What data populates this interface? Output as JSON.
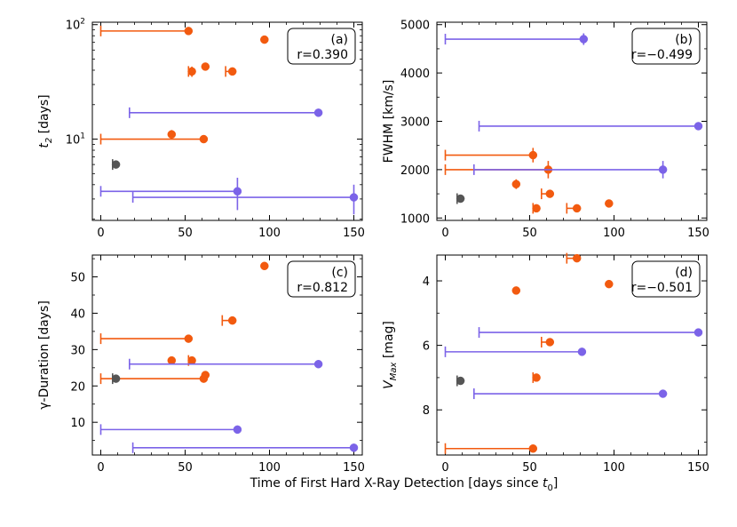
{
  "figure": {
    "shared_xlabel_pre": "Time of First Hard X-Ray Detection [days since ",
    "shared_xlabel_sym": "t",
    "shared_xlabel_sub": "0",
    "shared_xlabel_post": "]"
  },
  "colors": {
    "orange": "#f25a0f",
    "purple": "#7b63e8",
    "gray": "#555555"
  },
  "chart_data": [
    {
      "type": "scatter",
      "panel": "(a)",
      "r_label": "r=0.390",
      "ylabel_main": "t",
      "ylabel_sub": "2",
      "ylabel_post": " [days]",
      "yscale": "log",
      "xlim": [
        -5,
        155
      ],
      "ylim": [
        1.95,
        105
      ],
      "x_ticks": [
        0,
        50,
        100,
        150
      ],
      "y_ticks": [
        10,
        100
      ],
      "y_tick_labels": [
        {
          "base": "10",
          "exp": "1"
        },
        {
          "base": "10",
          "exp": "2"
        }
      ],
      "points": [
        {
          "x": 52,
          "y": 88,
          "xlow": 0,
          "yerr": 0,
          "color": "orange"
        },
        {
          "x": 97,
          "y": 74,
          "xlow": null,
          "yerr": 5,
          "color": "orange"
        },
        {
          "x": 62,
          "y": 43,
          "xlow": null,
          "yerr": 3,
          "color": "orange"
        },
        {
          "x": 54,
          "y": 39,
          "xlow": 52,
          "yerr": 4,
          "color": "orange"
        },
        {
          "x": 78,
          "y": 39,
          "xlow": 74,
          "yerr": 2,
          "color": "orange"
        },
        {
          "x": 129,
          "y": 17,
          "xlow": 17,
          "yerr": 1.3,
          "color": "purple"
        },
        {
          "x": 42,
          "y": 11,
          "xlow": null,
          "yerr": 1,
          "color": "orange"
        },
        {
          "x": 61,
          "y": 10,
          "xlow": 0,
          "yerr": 0,
          "color": "orange"
        },
        {
          "x": 9,
          "y": 6,
          "xlow": 7,
          "yerr": 0,
          "color": "gray"
        },
        {
          "x": 81,
          "y": 3.5,
          "xlow": 0,
          "yerr": 1.1,
          "color": "purple"
        },
        {
          "x": 150,
          "y": 3.1,
          "xlow": 19,
          "yerr": 0.9,
          "color": "purple"
        }
      ]
    },
    {
      "type": "scatter",
      "panel": "(b)",
      "r_label": "r=−0.499",
      "ylabel_main": "FWHM [km/s]",
      "ylabel_sub": "",
      "ylabel_post": "",
      "yscale": "linear",
      "xlim": [
        -5,
        155
      ],
      "ylim": [
        950,
        5050
      ],
      "x_ticks": [
        0,
        50,
        100,
        150
      ],
      "y_ticks": [
        1000,
        2000,
        3000,
        4000,
        5000
      ],
      "points": [
        {
          "x": 82,
          "y": 4700,
          "xlow": 0,
          "yerr": 120,
          "color": "purple"
        },
        {
          "x": 150,
          "y": 2900,
          "xlow": 20,
          "yerr": 0,
          "color": "purple"
        },
        {
          "x": 52,
          "y": 2300,
          "xlow": 0,
          "yerr": 150,
          "color": "orange"
        },
        {
          "x": 61,
          "y": 2000,
          "xlow": 0,
          "yerr": 180,
          "color": "orange"
        },
        {
          "x": 129,
          "y": 2000,
          "xlow": 17,
          "yerr": 180,
          "color": "purple"
        },
        {
          "x": 42,
          "y": 1700,
          "xlow": null,
          "yerr": 100,
          "color": "orange"
        },
        {
          "x": 62,
          "y": 1500,
          "xlow": 57,
          "yerr": 0,
          "color": "orange"
        },
        {
          "x": 9,
          "y": 1400,
          "xlow": 7,
          "yerr": 0,
          "color": "gray"
        },
        {
          "x": 97,
          "y": 1300,
          "xlow": null,
          "yerr": 80,
          "color": "orange"
        },
        {
          "x": 54,
          "y": 1200,
          "xlow": 52,
          "yerr": 0,
          "color": "orange"
        },
        {
          "x": 78,
          "y": 1200,
          "xlow": 72,
          "yerr": 0,
          "color": "orange"
        }
      ]
    },
    {
      "type": "scatter",
      "panel": "(c)",
      "r_label": "r=0.812",
      "ylabel_main": "γ-Duration [days]",
      "ylabel_sub": "",
      "ylabel_post": "",
      "yscale": "linear",
      "xlim": [
        -5,
        155
      ],
      "ylim": [
        1,
        56
      ],
      "x_ticks": [
        0,
        50,
        100,
        150
      ],
      "y_ticks": [
        10,
        20,
        30,
        40,
        50
      ],
      "points": [
        {
          "x": 97,
          "y": 53,
          "xlow": null,
          "yerr": 0,
          "color": "orange"
        },
        {
          "x": 78,
          "y": 38,
          "xlow": 72,
          "yerr": 0,
          "color": "orange"
        },
        {
          "x": 52,
          "y": 33,
          "xlow": 0,
          "yerr": 0,
          "color": "orange"
        },
        {
          "x": 42,
          "y": 27,
          "xlow": null,
          "yerr": 1,
          "color": "orange"
        },
        {
          "x": 54,
          "y": 27,
          "xlow": 52,
          "yerr": 0,
          "color": "orange"
        },
        {
          "x": 129,
          "y": 26,
          "xlow": 17,
          "yerr": 0,
          "color": "purple"
        },
        {
          "x": 62,
          "y": 23,
          "xlow": null,
          "yerr": 0,
          "color": "orange"
        },
        {
          "x": 61,
          "y": 22,
          "xlow": 0,
          "yerr": 0,
          "color": "orange"
        },
        {
          "x": 9,
          "y": 22,
          "xlow": 7,
          "yerr": 0,
          "color": "gray"
        },
        {
          "x": 81,
          "y": 8,
          "xlow": 0,
          "yerr": 0,
          "color": "purple"
        },
        {
          "x": 150,
          "y": 3,
          "xlow": 19,
          "yerr": 0,
          "color": "purple"
        }
      ]
    },
    {
      "type": "scatter",
      "panel": "(d)",
      "r_label": "r=−0.501",
      "ylabel_main": "V",
      "ylabel_sub": "Max",
      "ylabel_post": " [mag]",
      "yscale": "linear",
      "yinverted": true,
      "xlim": [
        -5,
        155
      ],
      "ylim": [
        9.4,
        3.2
      ],
      "x_ticks": [
        0,
        50,
        100,
        150
      ],
      "y_ticks": [
        4,
        6,
        8
      ],
      "points": [
        {
          "x": 78,
          "y": 3.3,
          "xlow": 72,
          "yerr": 0,
          "color": "orange"
        },
        {
          "x": 42,
          "y": 4.3,
          "xlow": null,
          "yerr": 0.1,
          "color": "orange"
        },
        {
          "x": 97,
          "y": 4.1,
          "xlow": null,
          "yerr": 0.1,
          "color": "orange"
        },
        {
          "x": 150,
          "y": 5.6,
          "xlow": 20,
          "yerr": 0,
          "color": "purple"
        },
        {
          "x": 62,
          "y": 5.9,
          "xlow": 57,
          "yerr": 0,
          "color": "orange"
        },
        {
          "x": 81,
          "y": 6.2,
          "xlow": 0,
          "yerr": 0,
          "color": "purple"
        },
        {
          "x": 9,
          "y": 7.1,
          "xlow": 7,
          "yerr": 0,
          "color": "gray"
        },
        {
          "x": 54,
          "y": 7.0,
          "xlow": 52,
          "yerr": 0,
          "color": "orange"
        },
        {
          "x": 129,
          "y": 7.5,
          "xlow": 17,
          "yerr": 0,
          "color": "purple"
        },
        {
          "x": 52,
          "y": 9.2,
          "xlow": 0,
          "yerr": 0,
          "color": "orange"
        }
      ]
    }
  ]
}
